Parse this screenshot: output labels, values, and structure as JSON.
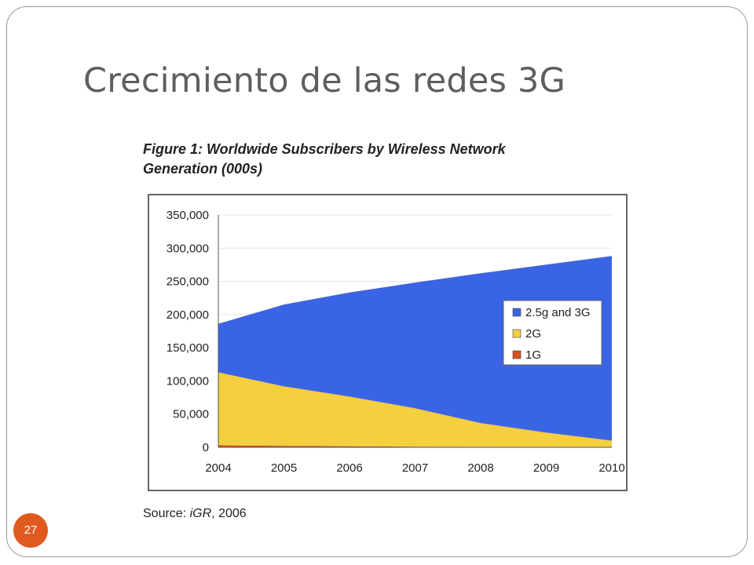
{
  "slide": {
    "title": "Crecimiento de las redes 3G",
    "page_number": "27"
  },
  "figure": {
    "caption_line1": "Figure 1: Worldwide Subscribers by Wireless Network",
    "caption_line2": "Generation (000s)",
    "source_prefix": "Source: ",
    "source_italic": "iGR",
    "source_suffix": ", 2006"
  },
  "colors": {
    "accent_badge": "#e05a1f",
    "series_3g": "#3a64e6",
    "series_2g": "#f4cf3f",
    "series_1g": "#d9501e"
  },
  "chart_data": {
    "type": "area",
    "stacked": true,
    "x": [
      "2004",
      "2005",
      "2006",
      "2007",
      "2008",
      "2009",
      "2010"
    ],
    "series": [
      {
        "name": "1G",
        "values": [
          3000,
          2000,
          1500,
          1000,
          700,
          400,
          200
        ]
      },
      {
        "name": "2G",
        "values": [
          110000,
          90000,
          75000,
          58000,
          36000,
          22000,
          10000
        ]
      },
      {
        "name": "2.5g and 3G",
        "values": [
          73000,
          123000,
          156500,
          189000,
          225300,
          252600,
          277800
        ]
      }
    ],
    "ylim": [
      0,
      350000
    ],
    "yticks": [
      "0",
      "50,000",
      "100,000",
      "150,000",
      "200,000",
      "250,000",
      "300,000",
      "350,000"
    ],
    "legend_order": [
      "2.5g and 3G",
      "2G",
      "1G"
    ],
    "legend_position": "right",
    "grid": true
  }
}
